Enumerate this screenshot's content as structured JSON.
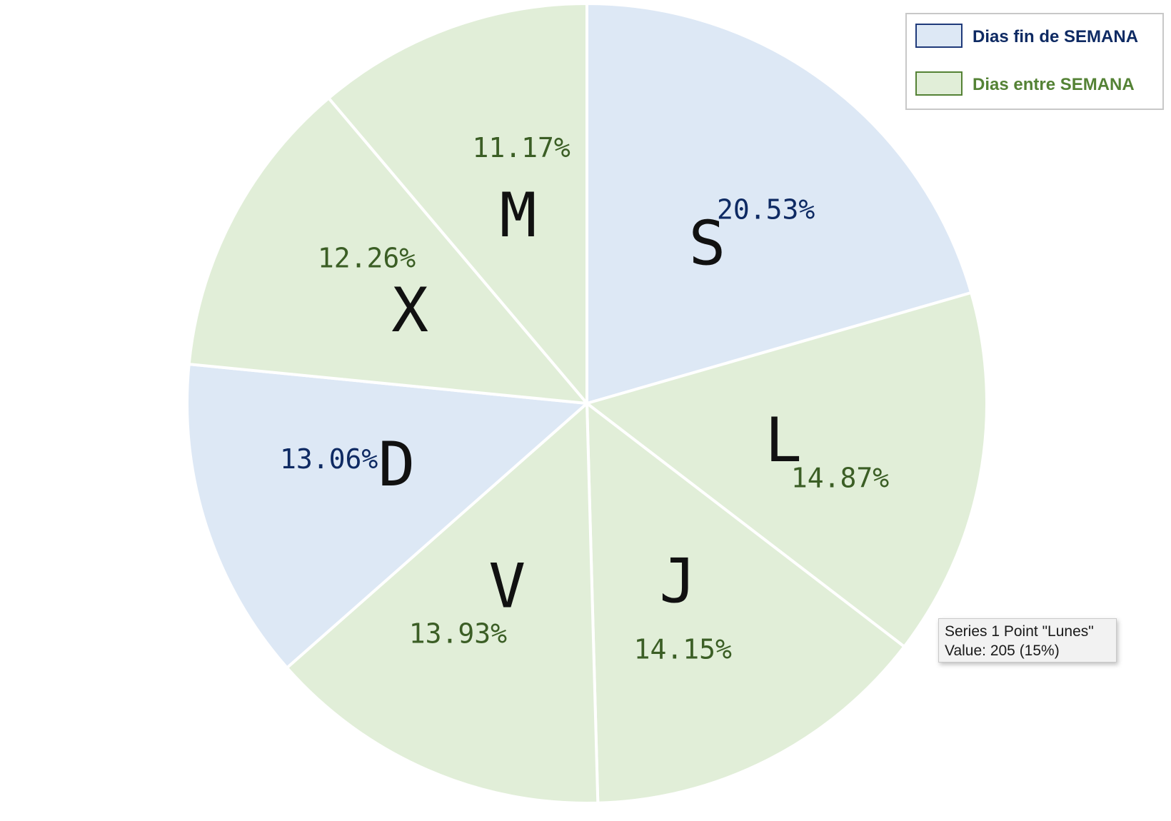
{
  "chart_data": {
    "type": "pie",
    "start_angle_deg": 90,
    "direction": "clockwise",
    "slices": [
      {
        "label": "S",
        "value_pct": 20.53,
        "pct_text": "20.53%",
        "group": "weekend"
      },
      {
        "label": "L",
        "value_pct": 14.87,
        "pct_text": "14.87%",
        "group": "weekday"
      },
      {
        "label": "J",
        "value_pct": 14.15,
        "pct_text": "14.15%",
        "group": "weekday"
      },
      {
        "label": "V",
        "value_pct": 13.93,
        "pct_text": "13.93%",
        "group": "weekday"
      },
      {
        "label": "D",
        "value_pct": 13.06,
        "pct_text": "13.06%",
        "group": "weekend"
      },
      {
        "label": "X",
        "value_pct": 12.26,
        "pct_text": "12.26%",
        "group": "weekday"
      },
      {
        "label": "M",
        "value_pct": 11.17,
        "pct_text": "11.17%",
        "group": "weekday"
      }
    ],
    "legend": {
      "placement": "top-right",
      "items": [
        {
          "label": "Dias fin de SEMANA",
          "group": "weekend"
        },
        {
          "label": "Dias entre SEMANA",
          "group": "weekday"
        }
      ]
    }
  },
  "colors": {
    "weekend_fill": "#dde8f5",
    "weekend_border": "#1f3a7a",
    "weekend_text": "#0e2a63",
    "weekday_fill": "#e1eed8",
    "weekday_border": "#548235",
    "weekday_text": "#3b5e25",
    "slice_separator": "#ffffff"
  },
  "tooltip": {
    "line1": "Series 1 Point \"Lunes\"",
    "line2": "Value: 205 (15%)"
  }
}
